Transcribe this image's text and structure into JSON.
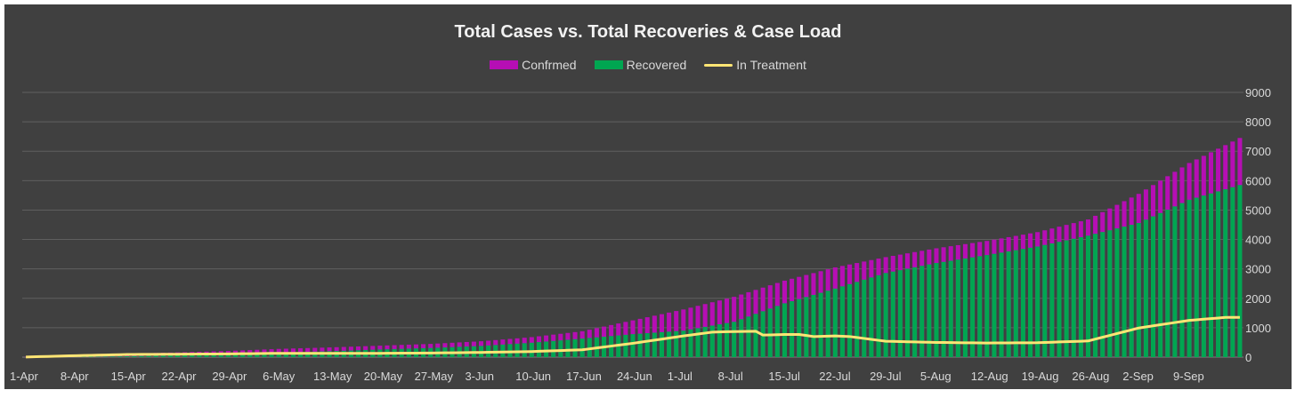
{
  "chart_data": {
    "type": "bar",
    "title": "Total Cases vs. Total Recoveries & Case Load",
    "legend_position": "top",
    "ylim": [
      0,
      9000
    ],
    "y_ticks": [
      0,
      1000,
      2000,
      3000,
      4000,
      5000,
      6000,
      7000,
      8000,
      9000
    ],
    "x_tick_labels": [
      "1-Apr",
      "8-Apr",
      "15-Apr",
      "22-Apr",
      "29-Apr",
      "6-May",
      "13-May",
      "20-May",
      "27-May",
      "3-Jun",
      "10-Jun",
      "17-Jun",
      "24-Jun",
      "1-Jul",
      "8-Jul",
      "15-Jul",
      "22-Jul",
      "29-Jul",
      "5-Aug",
      "12-Aug",
      "19-Aug",
      "26-Aug",
      "2-Sep",
      "9-Sep"
    ],
    "grid": "horizontal",
    "colors": {
      "confirmed": "#b60eb4",
      "recovered": "#00a651",
      "in_treatment": "#ffe574",
      "grid": "#5f5f5f"
    },
    "series": [
      {
        "name": "Confrmed",
        "type": "bar",
        "key": "confirmed",
        "anchors": [
          [
            0,
            5
          ],
          [
            7,
            60
          ],
          [
            14,
            120
          ],
          [
            21,
            160
          ],
          [
            28,
            210
          ],
          [
            35,
            280
          ],
          [
            42,
            330
          ],
          [
            49,
            390
          ],
          [
            56,
            450
          ],
          [
            63,
            540
          ],
          [
            70,
            680
          ],
          [
            77,
            880
          ],
          [
            84,
            1250
          ],
          [
            91,
            1620
          ],
          [
            98,
            2050
          ],
          [
            105,
            2600
          ],
          [
            112,
            3050
          ],
          [
            119,
            3400
          ],
          [
            126,
            3700
          ],
          [
            133,
            3950
          ],
          [
            140,
            4250
          ],
          [
            147,
            4680
          ],
          [
            154,
            5550
          ],
          [
            161,
            6600
          ],
          [
            168,
            7450
          ]
        ]
      },
      {
        "name": "Recovered",
        "type": "bar",
        "key": "recovered",
        "anchors": [
          [
            0,
            0
          ],
          [
            7,
            10
          ],
          [
            14,
            30
          ],
          [
            21,
            60
          ],
          [
            28,
            100
          ],
          [
            35,
            150
          ],
          [
            42,
            200
          ],
          [
            49,
            260
          ],
          [
            56,
            310
          ],
          [
            63,
            380
          ],
          [
            70,
            490
          ],
          [
            77,
            630
          ],
          [
            84,
            780
          ],
          [
            91,
            900
          ],
          [
            98,
            1200
          ],
          [
            105,
            1830
          ],
          [
            112,
            2330
          ],
          [
            119,
            2860
          ],
          [
            126,
            3200
          ],
          [
            133,
            3470
          ],
          [
            140,
            3760
          ],
          [
            147,
            4130
          ],
          [
            154,
            4560
          ],
          [
            161,
            5350
          ],
          [
            168,
            5850
          ]
        ]
      },
      {
        "name": "In Treatment",
        "type": "line",
        "key": "in_treatment",
        "anchors": [
          [
            0,
            5
          ],
          [
            7,
            50
          ],
          [
            14,
            90
          ],
          [
            21,
            100
          ],
          [
            28,
            110
          ],
          [
            35,
            130
          ],
          [
            42,
            130
          ],
          [
            49,
            130
          ],
          [
            56,
            140
          ],
          [
            63,
            160
          ],
          [
            70,
            190
          ],
          [
            77,
            250
          ],
          [
            84,
            470
          ],
          [
            91,
            720
          ],
          [
            95,
            850
          ],
          [
            98,
            870
          ],
          [
            101,
            880
          ],
          [
            102,
            750
          ],
          [
            105,
            770
          ],
          [
            107,
            770
          ],
          [
            109,
            700
          ],
          [
            112,
            720
          ],
          [
            114,
            700
          ],
          [
            119,
            540
          ],
          [
            126,
            500
          ],
          [
            133,
            480
          ],
          [
            140,
            490
          ],
          [
            147,
            550
          ],
          [
            154,
            990
          ],
          [
            161,
            1250
          ],
          [
            166,
            1350
          ],
          [
            168,
            1350
          ]
        ]
      }
    ]
  }
}
